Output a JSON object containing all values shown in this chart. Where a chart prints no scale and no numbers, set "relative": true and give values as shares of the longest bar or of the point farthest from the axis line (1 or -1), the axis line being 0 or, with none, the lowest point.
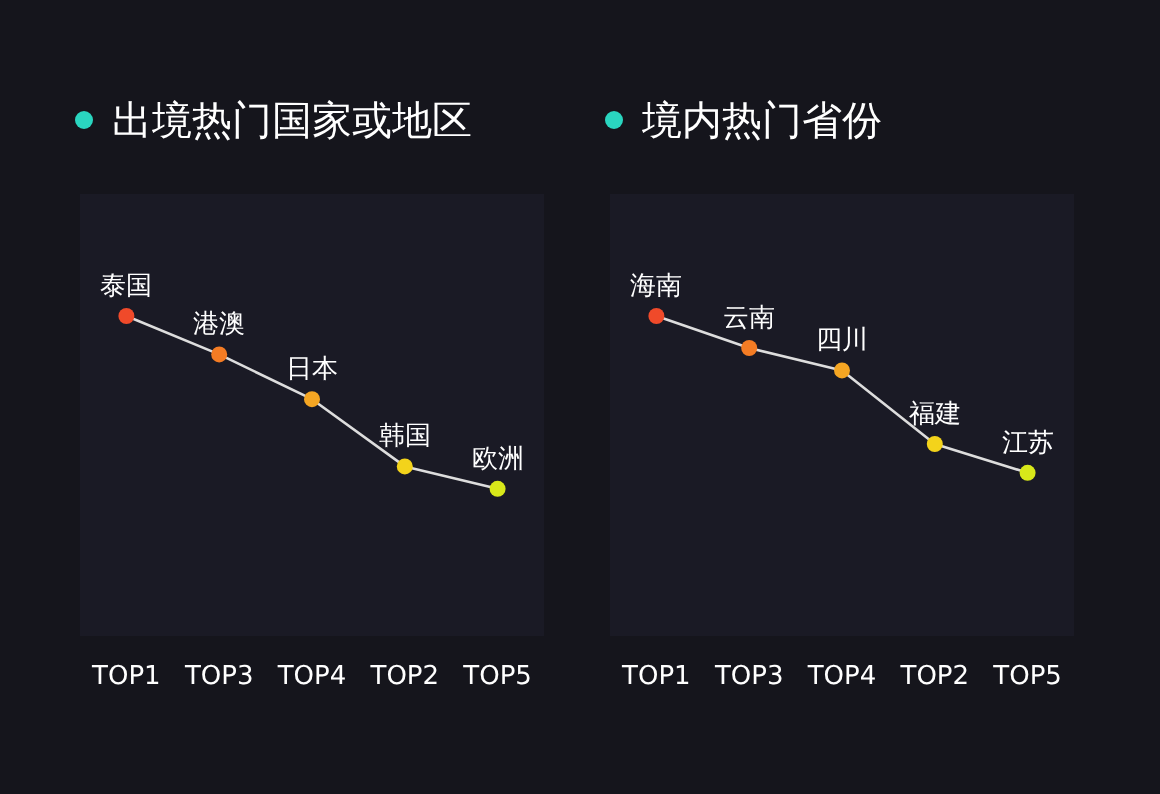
{
  "chart_data": [
    {
      "type": "line",
      "title": "出境热门国家或地区",
      "relative": true,
      "marker": "circle",
      "line_style": "solid",
      "categories": [
        "TOP1",
        "TOP3",
        "TOP4",
        "TOP2",
        "TOP5"
      ],
      "series": [
        {
          "color": "#dddddd",
          "values": [
            1,
            0.88,
            0.74,
            0.53,
            0.46
          ],
          "colors": [
            "#f04a2a",
            "#f47c24",
            "#f5a623",
            "#f3d31b",
            "#d8e81a"
          ]
        }
      ],
      "annotations": [
        {
          "text": "泰国",
          "x": "TOP1",
          "y": 1
        },
        {
          "text": "港澳",
          "x": "TOP3",
          "y": 0.88
        },
        {
          "text": "日本",
          "x": "TOP4",
          "y": 0.74
        },
        {
          "text": "韩国",
          "x": "TOP2",
          "y": 0.53
        },
        {
          "text": "欧洲",
          "x": "TOP5",
          "y": 0.46
        }
      ]
    },
    {
      "type": "line",
      "title": "境内热门省份",
      "relative": true,
      "marker": "circle",
      "line_style": "solid",
      "categories": [
        "TOP1",
        "TOP3",
        "TOP4",
        "TOP2",
        "TOP5"
      ],
      "series": [
        {
          "color": "#dddddd",
          "values": [
            1,
            0.9,
            0.83,
            0.6,
            0.51
          ],
          "colors": [
            "#f04a2a",
            "#f47c24",
            "#f5a623",
            "#f3d31b",
            "#d8e81a"
          ]
        }
      ],
      "annotations": [
        {
          "text": "海南",
          "x": "TOP1",
          "y": 1
        },
        {
          "text": "云南",
          "x": "TOP3",
          "y": 0.9
        },
        {
          "text": "四川",
          "x": "TOP4",
          "y": 0.83
        },
        {
          "text": "福建",
          "x": "TOP2",
          "y": 0.6
        },
        {
          "text": "江苏",
          "x": "TOP5",
          "y": 0.51
        }
      ]
    }
  ]
}
